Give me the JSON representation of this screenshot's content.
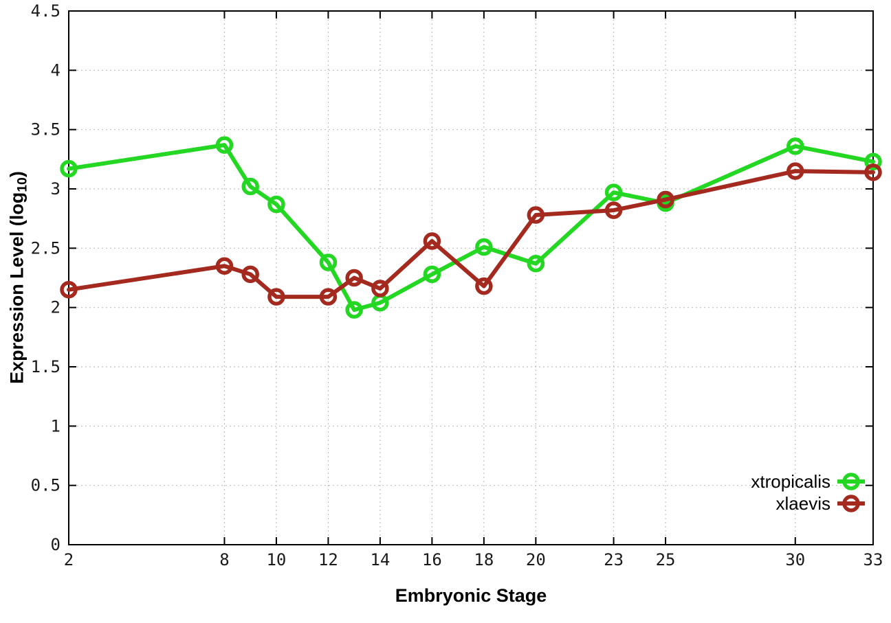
{
  "figure": {
    "background": "#ffffff",
    "border_color": "#000000",
    "grid_color": "#bfbfbf",
    "tick_color": "#000000",
    "tick_label_color": "#1a1a1a"
  },
  "chart_data": {
    "type": "line",
    "title": "",
    "xlabel": "Embryonic Stage",
    "ylabel_main": "Expression Level (log",
    "ylabel_sub": "10",
    "ylabel_close": ")",
    "xlim": [
      2,
      33
    ],
    "ylim": [
      0,
      4.5
    ],
    "grid": true,
    "grid_style": "dotted",
    "legend_position": "bottom-right",
    "xticks": [
      2,
      8,
      10,
      12,
      14,
      16,
      18,
      20,
      23,
      25,
      30,
      33
    ],
    "xtick_labels": [
      "2",
      "8",
      "10",
      "12",
      "14",
      "16",
      "18",
      "20",
      "23",
      "25",
      "30",
      "33"
    ],
    "yticks": [
      0,
      0.5,
      1,
      1.5,
      2,
      2.5,
      3,
      3.5,
      4,
      4.5
    ],
    "ytick_labels": [
      "0",
      "0.5",
      "1",
      "1.5",
      "2",
      "2.5",
      "3",
      "3.5",
      "4",
      "4.5"
    ],
    "x": [
      2,
      8,
      9,
      10,
      12,
      13,
      14,
      16,
      18,
      20,
      23,
      25,
      30,
      33
    ],
    "series": [
      {
        "name": "xtropicalis",
        "color": "#23d723",
        "marker": "open-circle",
        "values": [
          3.17,
          3.37,
          3.02,
          2.87,
          2.38,
          1.98,
          2.04,
          2.28,
          2.51,
          2.37,
          2.97,
          2.88,
          3.36,
          3.23
        ]
      },
      {
        "name": "xlaevis",
        "color": "#a42a20",
        "marker": "open-circle",
        "values": [
          2.15,
          2.35,
          2.28,
          2.09,
          2.09,
          2.25,
          2.16,
          2.56,
          2.18,
          2.78,
          2.82,
          2.91,
          3.15,
          3.14
        ]
      }
    ]
  }
}
